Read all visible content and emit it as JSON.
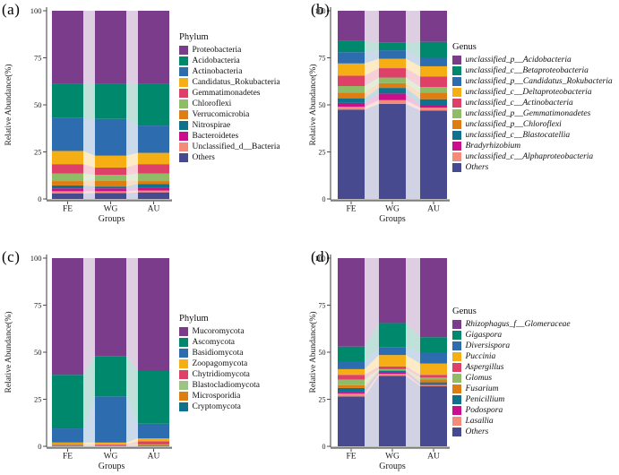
{
  "chart_data": [
    {
      "type": "bar",
      "variant": "stacked-alluvial",
      "panel_label": "(a)",
      "legend_title": "Phylum",
      "italic_labels": false,
      "ylabel": "Relative Abundance(%)",
      "xlabel": "Groups",
      "ylim": [
        0,
        100
      ],
      "yticks": [
        0,
        25,
        50,
        75,
        100
      ],
      "categories": [
        "FE",
        "WG",
        "AU"
      ],
      "legend_position": "right",
      "series": [
        {
          "name": "Proteobacteria",
          "color": "#7B3D8B",
          "values": [
            39.0,
            39.0,
            39.0
          ]
        },
        {
          "name": "Acidobacteria",
          "color": "#00886D",
          "values": [
            18.0,
            18.5,
            22.0
          ]
        },
        {
          "name": "Actinobacteria",
          "color": "#2E6CB0",
          "values": [
            17.5,
            19.5,
            14.5
          ]
        },
        {
          "name": "Candidatus_Rokubacteria",
          "color": "#F5AF14",
          "values": [
            7.0,
            6.3,
            6.0
          ]
        },
        {
          "name": "Gemmatimonadetes",
          "color": "#DD4168",
          "values": [
            5.0,
            3.9,
            5.0
          ]
        },
        {
          "name": "Chloroflexi",
          "color": "#90BC68",
          "values": [
            4.0,
            3.1,
            4.0
          ]
        },
        {
          "name": "Verrucomicrobia",
          "color": "#DE7D12",
          "values": [
            2.3,
            3.1,
            1.5
          ]
        },
        {
          "name": "Nitrospirae",
          "color": "#0F718C",
          "values": [
            1.6,
            1.0,
            2.0
          ]
        },
        {
          "name": "Bacteroidetes",
          "color": "#C90F8B",
          "values": [
            1.5,
            1.5,
            1.5
          ]
        },
        {
          "name": "Unclassified_d__Bacteria",
          "color": "#F48A79",
          "values": [
            1.1,
            1.0,
            1.0
          ]
        },
        {
          "name": "Others",
          "color": "#474A8E",
          "values": [
            3.0,
            3.1,
            3.5
          ]
        }
      ]
    },
    {
      "type": "bar",
      "variant": "stacked-alluvial",
      "panel_label": "(b)",
      "legend_title": "Genus",
      "italic_labels": true,
      "ylabel": "Relative Abundance(%)",
      "xlabel": "Groups",
      "ylim": [
        0,
        100
      ],
      "yticks": [
        0,
        25,
        50,
        75,
        100
      ],
      "categories": [
        "FE",
        "WG",
        "AU"
      ],
      "legend_position": "right",
      "series": [
        {
          "name": "unclassified_p__Acidobacteria",
          "color": "#7B3D8B",
          "values": [
            16.0,
            17.0,
            16.5
          ]
        },
        {
          "name": "unclassified_c__Betaproteobacteria",
          "color": "#00886D",
          "values": [
            6.0,
            4.0,
            8.5
          ]
        },
        {
          "name": "unclassified_p__Candidatus_Rokubacteria",
          "color": "#2E6CB0",
          "values": [
            6.0,
            4.5,
            4.5
          ]
        },
        {
          "name": "unclassified_c__Deltaproteobacteria",
          "color": "#F5AF14",
          "values": [
            6.5,
            5.0,
            5.5
          ]
        },
        {
          "name": "unclassified_c__Actinobacteria",
          "color": "#DD4168",
          "values": [
            5.5,
            5.0,
            5.5
          ]
        },
        {
          "name": "unclassified_p__Gemmatimonadetes",
          "color": "#90BC68",
          "values": [
            3.5,
            3.0,
            3.0
          ]
        },
        {
          "name": "unclassified_p__Chloroflexi",
          "color": "#DE7D12",
          "values": [
            3.0,
            2.5,
            3.5
          ]
        },
        {
          "name": "unclassified_c__Blastocatellia",
          "color": "#0F718C",
          "values": [
            2.5,
            3.0,
            3.0
          ]
        },
        {
          "name": "Bradyrhizobium",
          "color": "#C90F8B",
          "values": [
            2.0,
            3.5,
            1.5
          ]
        },
        {
          "name": "unclassified_c__Alphaproteobacteria",
          "color": "#F48A79",
          "values": [
            1.5,
            2.0,
            1.5
          ]
        },
        {
          "name": "Others",
          "color": "#474A8E",
          "values": [
            47.5,
            50.5,
            47.0
          ]
        }
      ]
    },
    {
      "type": "bar",
      "variant": "stacked-alluvial",
      "panel_label": "(c)",
      "legend_title": "Phylum",
      "italic_labels": false,
      "ylabel": "Relative Abundance(%)",
      "xlabel": "Groups",
      "ylim": [
        0,
        100
      ],
      "yticks": [
        0,
        25,
        50,
        75,
        100
      ],
      "categories": [
        "FE",
        "WG",
        "AU"
      ],
      "legend_position": "right",
      "series": [
        {
          "name": "Mucoromycota",
          "color": "#7B3D8B",
          "values": [
            62.0,
            52.0,
            60.0
          ]
        },
        {
          "name": "Ascomycota",
          "color": "#00886D",
          "values": [
            28.5,
            21.5,
            28.0
          ]
        },
        {
          "name": "Basidiomycota",
          "color": "#2E6CB0",
          "values": [
            7.5,
            24.5,
            7.8
          ]
        },
        {
          "name": "Zoopagomycota",
          "color": "#F5AF14",
          "values": [
            0.8,
            1.0,
            1.5
          ]
        },
        {
          "name": "Chytridiomycota",
          "color": "#DD4168",
          "values": [
            0.4,
            0.4,
            1.7
          ]
        },
        {
          "name": "Blastocladiomycota",
          "color": "#9CC480",
          "values": [
            0.2,
            0.2,
            0.2
          ]
        },
        {
          "name": "Microsporidia",
          "color": "#DE7D12",
          "values": [
            0.3,
            0.2,
            0.5
          ]
        },
        {
          "name": "Cryptomycota",
          "color": "#0F718C",
          "values": [
            0.3,
            0.2,
            0.3
          ]
        }
      ]
    },
    {
      "type": "bar",
      "variant": "stacked-alluvial",
      "panel_label": "(d)",
      "legend_title": "Genus",
      "italic_labels": true,
      "ylabel": "Relative Abundance(%)",
      "xlabel": "Groups",
      "ylim": [
        0,
        100
      ],
      "yticks": [
        0,
        25,
        50,
        75,
        100
      ],
      "categories": [
        "FE",
        "WG",
        "AU"
      ],
      "legend_position": "right",
      "series": [
        {
          "name": "Rhizophagus_f__Glomeraceae",
          "color": "#7B3D8B",
          "values": [
            47.0,
            34.5,
            42.0
          ]
        },
        {
          "name": "Gigaspora",
          "color": "#00886D",
          "values": [
            8.0,
            13.0,
            8.0
          ]
        },
        {
          "name": "Diversispora",
          "color": "#2E6CB0",
          "values": [
            4.0,
            4.0,
            6.0
          ]
        },
        {
          "name": "Puccinia",
          "color": "#F5AF14",
          "values": [
            3.0,
            6.0,
            6.0
          ]
        },
        {
          "name": "Aspergillus",
          "color": "#DD4168",
          "values": [
            2.5,
            1.5,
            1.5
          ]
        },
        {
          "name": "Glomus",
          "color": "#90BC68",
          "values": [
            3.0,
            0.5,
            1.0
          ]
        },
        {
          "name": "Fusarium",
          "color": "#DE7D12",
          "values": [
            1.5,
            0.5,
            1.5
          ]
        },
        {
          "name": "Penicillium",
          "color": "#0F718C",
          "values": [
            2.0,
            0.5,
            1.0
          ]
        },
        {
          "name": "Podospora",
          "color": "#C90F8B",
          "values": [
            1.0,
            1.0,
            0.5
          ]
        },
        {
          "name": "Lasallia",
          "color": "#F48A79",
          "values": [
            1.5,
            1.0,
            0.5
          ]
        },
        {
          "name": "Others",
          "color": "#474A8E",
          "values": [
            26.5,
            37.5,
            32.0
          ]
        }
      ]
    }
  ],
  "style": {
    "flow_opacity": 0.25,
    "axis_color": "#4d4d4d",
    "baseline_color": "#7d7d7d",
    "text_color": "#1a1a1a"
  }
}
